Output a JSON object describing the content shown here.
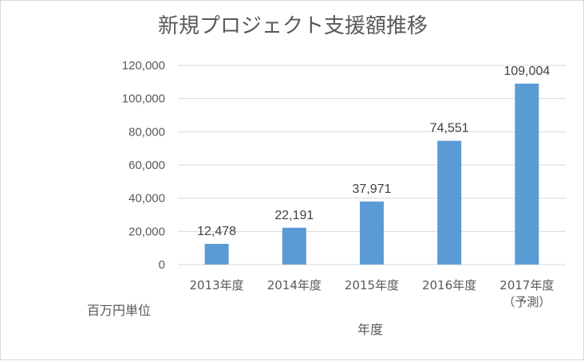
{
  "chart_data": {
    "type": "bar",
    "title": "新規プロジェクト支援額推移",
    "categories": [
      "2013年度",
      "2014年度",
      "2015年度",
      "2016年度",
      "2017年度"
    ],
    "category_sublabels": [
      "",
      "",
      "",
      "",
      "（予測）"
    ],
    "values": [
      12478,
      22191,
      37971,
      74551,
      109004
    ],
    "value_labels": [
      "12,478",
      "22,191",
      "37,971",
      "74,551",
      "109,004"
    ],
    "y_ticks": [
      "0",
      "20,000",
      "40,000",
      "60,000",
      "80,000",
      "100,000",
      "120,000"
    ],
    "ylim": [
      0,
      120000
    ],
    "xlabel": "年度",
    "ylabel": "百万円単位",
    "grid": true,
    "bar_color": "#5b9bd5"
  }
}
